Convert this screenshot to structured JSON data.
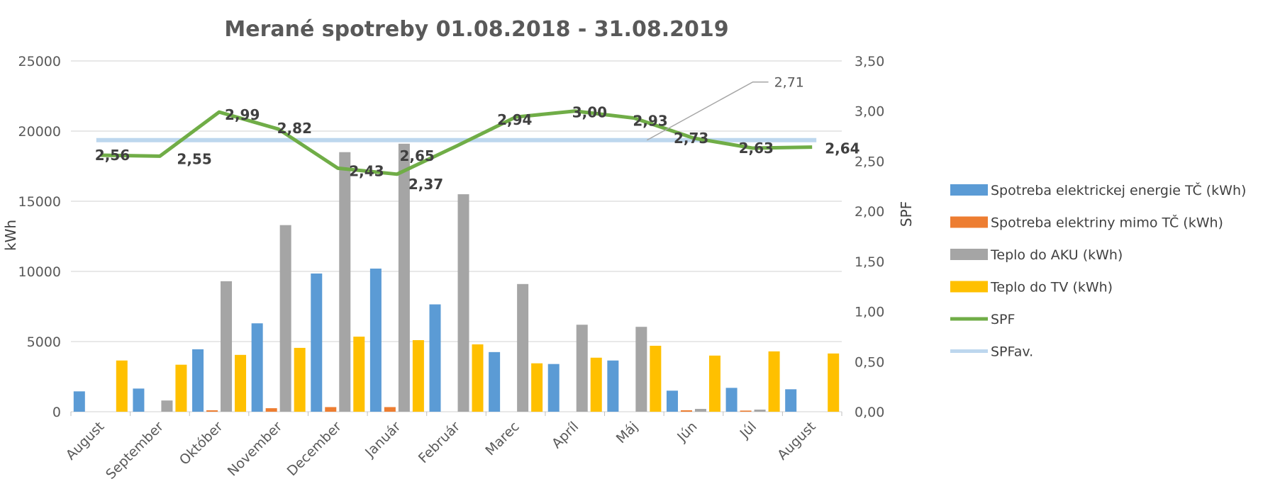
{
  "chart_data": {
    "type": "bar",
    "title": "Merané spotreby 01.08.2018 - 31.08.2019",
    "ylabel": "kWh",
    "y2label": "SPF",
    "ylim": [
      0,
      25000
    ],
    "y2lim": [
      0,
      3.5
    ],
    "yticks": [
      "0",
      "5000",
      "10000",
      "15000",
      "20000",
      "25000"
    ],
    "y2ticks": [
      "0,00",
      "0,50",
      "1,00",
      "1,50",
      "2,00",
      "2,50",
      "3,00",
      "3,50"
    ],
    "grid": true,
    "legend_position": "right",
    "categories": [
      "August",
      "September",
      "Október",
      "November",
      "December",
      "Január",
      "Február",
      "Marec",
      "Apríl",
      "Máj",
      "Jún",
      "Júl",
      "August"
    ],
    "series": [
      {
        "name": "Spotreba elektrickej energie TČ (kWh)",
        "kind": "bar",
        "color": "#5B9BD5",
        "values": [
          1450,
          1650,
          4450,
          6300,
          9850,
          10200,
          7650,
          4250,
          3400,
          3650,
          1500,
          1700,
          1600
        ]
      },
      {
        "name": "Spotreba elektriny mimo TČ (kWh)",
        "kind": "bar",
        "color": "#ED7D31",
        "values": [
          0,
          0,
          100,
          250,
          330,
          330,
          0,
          0,
          0,
          0,
          100,
          80,
          0
        ]
      },
      {
        "name": "Teplo do AKU (kWh)",
        "kind": "bar",
        "color": "#A5A5A5",
        "values": [
          0,
          800,
          9300,
          13300,
          18500,
          19100,
          15500,
          9100,
          6200,
          6050,
          200,
          150,
          0
        ]
      },
      {
        "name": "Teplo do TV (kWh)",
        "kind": "bar",
        "color": "#FFC000",
        "values": [
          3650,
          3350,
          4050,
          4550,
          5350,
          5100,
          4800,
          3450,
          3850,
          4700,
          4000,
          4300,
          4150
        ]
      },
      {
        "name": "SPF",
        "kind": "line",
        "axis": "secondary",
        "color": "#70AD47",
        "values": [
          2.56,
          2.55,
          2.99,
          2.82,
          2.43,
          2.37,
          2.65,
          2.94,
          3.0,
          2.93,
          2.73,
          2.63,
          2.64
        ],
        "labels": [
          "2,56",
          "2,55",
          "2,99",
          "2,82",
          "2,43",
          "2,37",
          "2,65",
          "2,94",
          "3,00",
          "2,93",
          "2,73",
          "2,63",
          "2,64"
        ]
      },
      {
        "name": "SPFav.",
        "kind": "line",
        "axis": "secondary",
        "color": "#BDD7EE",
        "values": [
          2.71,
          2.71,
          2.71,
          2.71,
          2.71,
          2.71,
          2.71,
          2.71,
          2.71,
          2.71,
          2.71,
          2.71,
          2.71
        ],
        "label": "2,71"
      }
    ]
  }
}
